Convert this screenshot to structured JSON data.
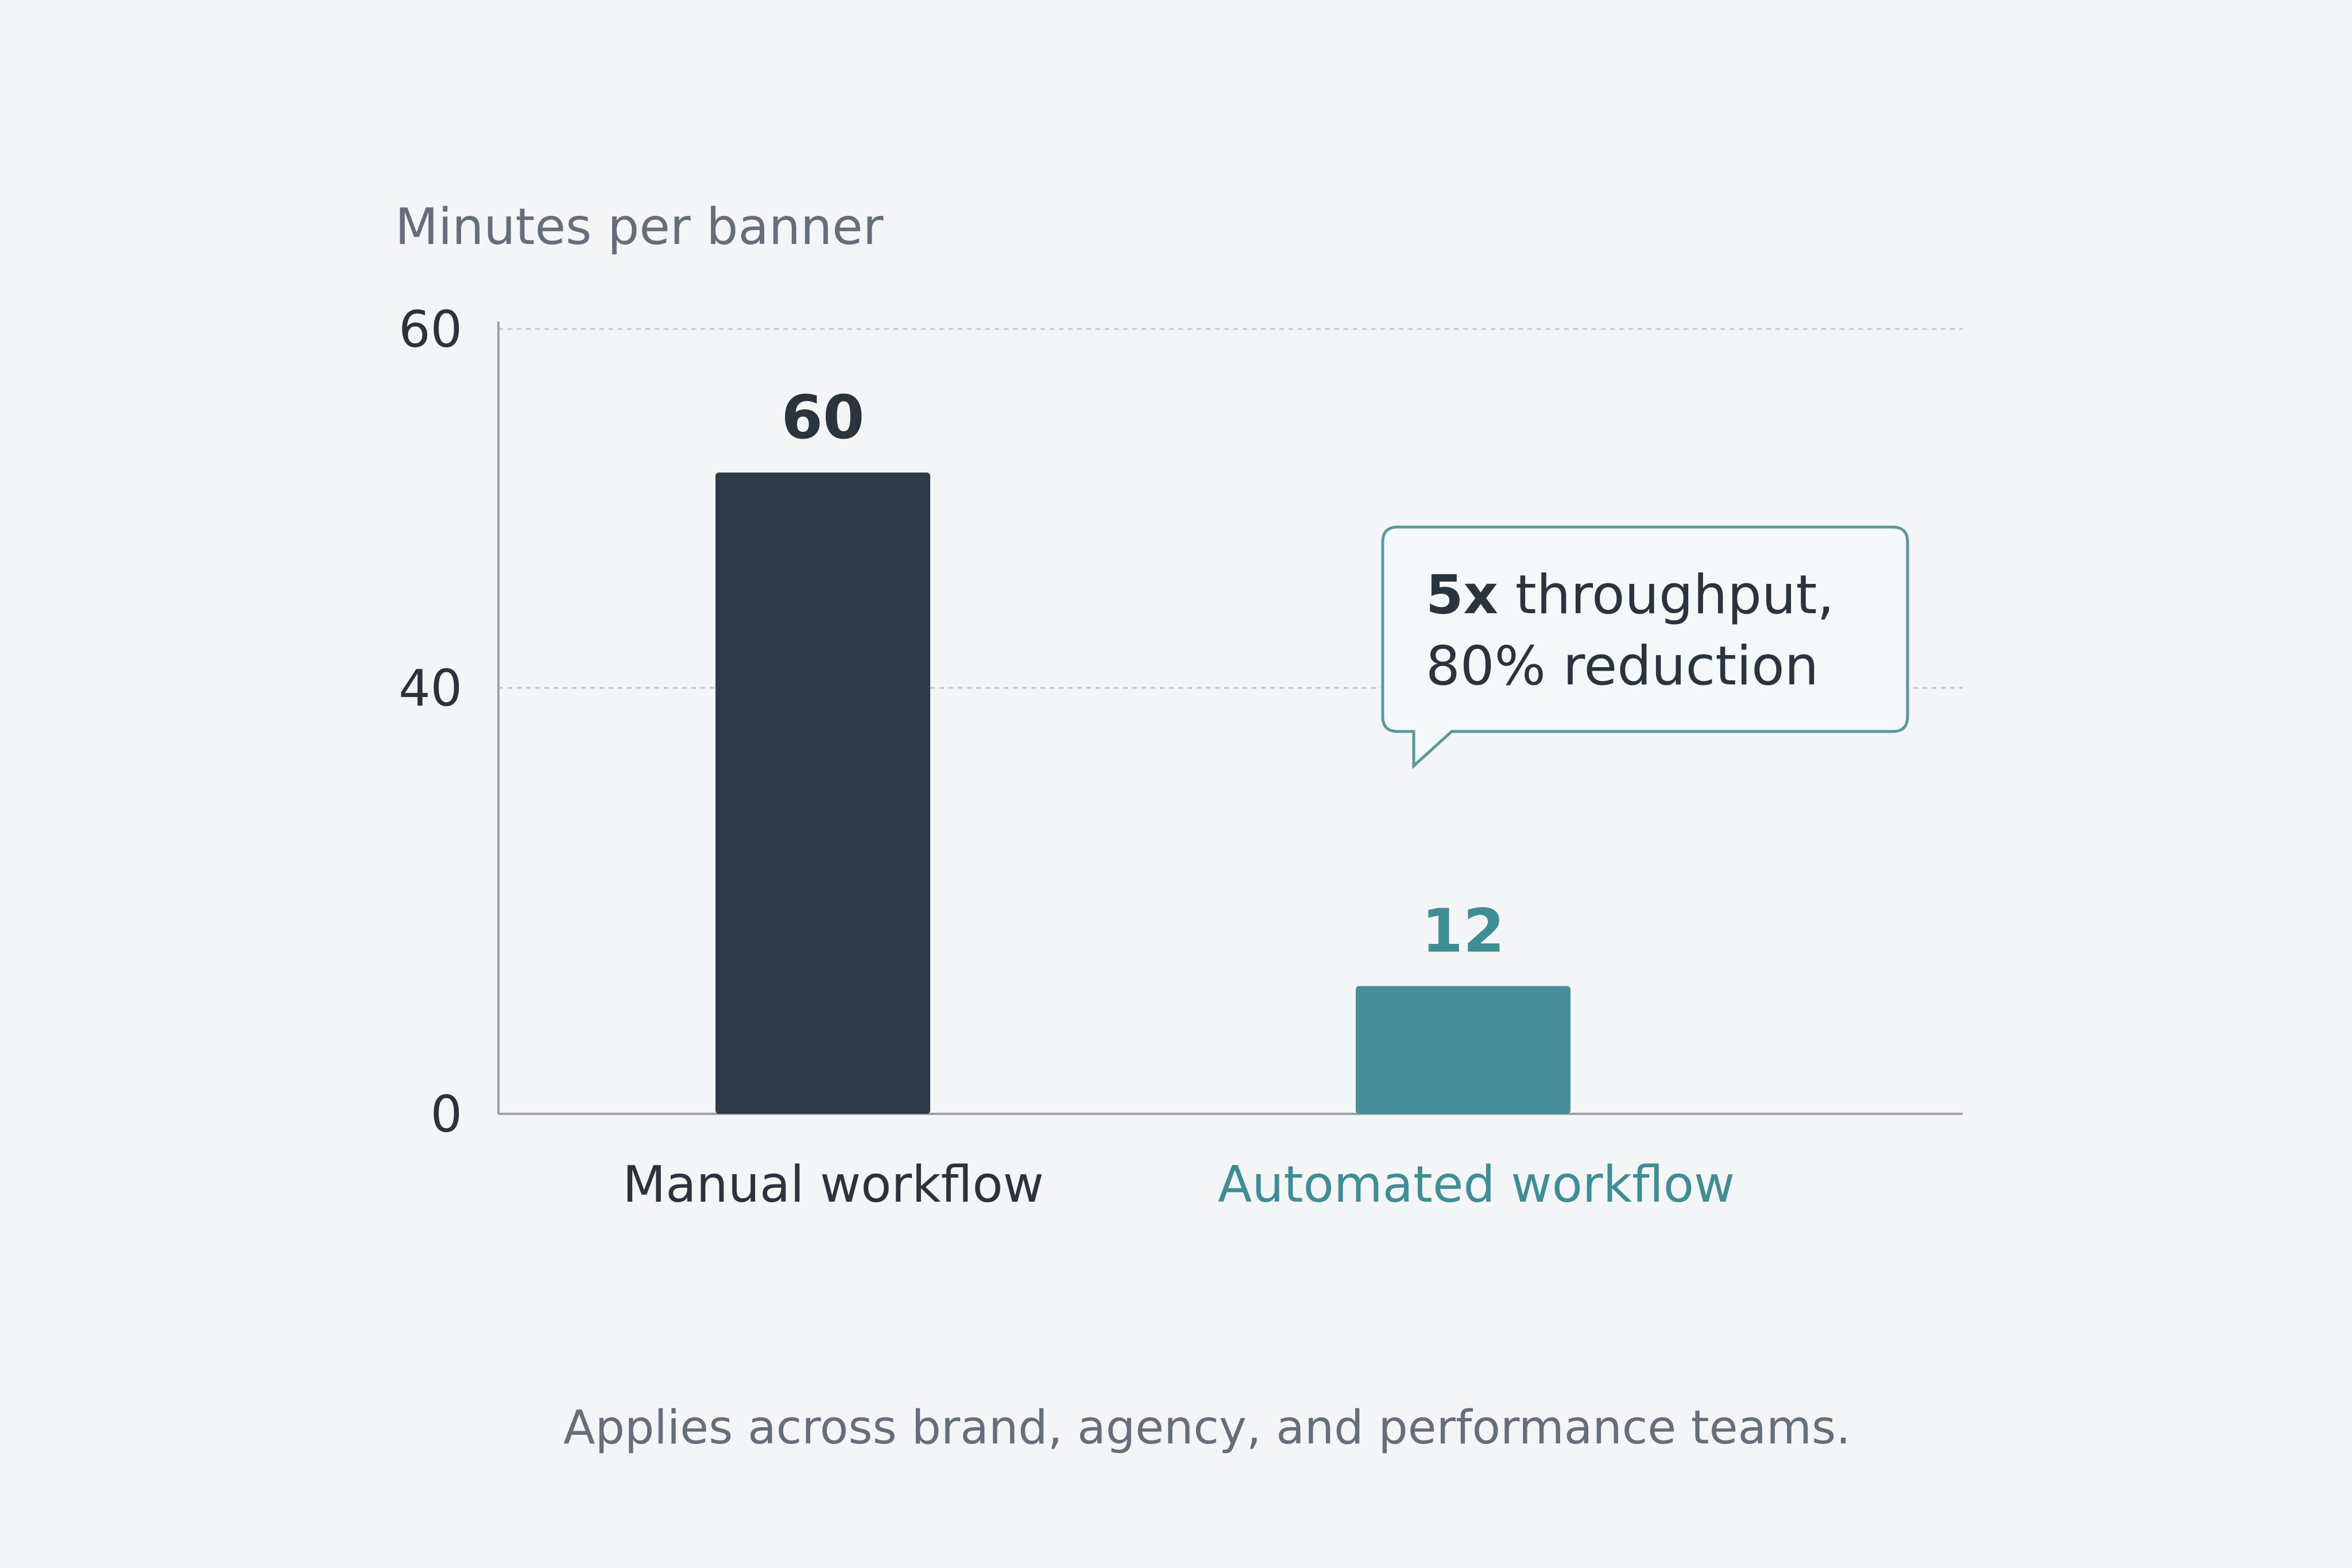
{
  "chart_data": {
    "type": "bar",
    "ylabel": "Minutes per banner",
    "categories": [
      "Manual workflow",
      "Automated workflow"
    ],
    "values": [
      60,
      12
    ],
    "value_labels": [
      "60",
      "12"
    ],
    "yticks": [
      0,
      40,
      60
    ],
    "ylim": [
      0,
      60
    ],
    "grid": true,
    "colors": {
      "Manual workflow": "#2e3a47",
      "Automated workflow": "#478f9a"
    },
    "category_label_colors": {
      "Manual workflow": "#2c333b",
      "Automated workflow": "#3f8d95"
    },
    "annotation": {
      "target": "Automated workflow",
      "bold": "5x",
      "line1_rest": " throughput,",
      "line2": "80% reduction"
    }
  },
  "footnote": "Applies across brand, agency, and performance teams."
}
